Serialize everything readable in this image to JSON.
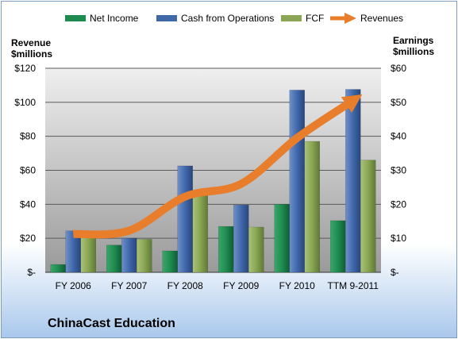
{
  "chart_data": {
    "type": "bar",
    "title": "ChinaCast Education",
    "categories": [
      "FY 2006",
      "FY 2007",
      "FY 2008",
      "FY 2009",
      "FY 2010",
      "TTM 9-2011"
    ],
    "series": [
      {
        "name": "Net Income",
        "axis": "right",
        "kind": "bar",
        "color": "#1e8b4e",
        "values": [
          2.3,
          8.0,
          6.3,
          13.5,
          20.0,
          15.2
        ]
      },
      {
        "name": "Cash from Operations",
        "axis": "right",
        "kind": "bar",
        "color": "#3f68a9",
        "values": [
          12.2,
          10.0,
          31.3,
          19.8,
          53.6,
          53.8
        ]
      },
      {
        "name": "FCF",
        "axis": "right",
        "kind": "bar",
        "color": "#8aa655",
        "values": [
          11.5,
          9.7,
          23.0,
          13.3,
          38.5,
          33.0
        ]
      },
      {
        "name": "Revenues",
        "axis": "left",
        "kind": "line",
        "color": "#e87d2b",
        "values": [
          22.5,
          24.5,
          44.5,
          52.0,
          79.0,
          101.0
        ]
      }
    ],
    "y_left": {
      "label_line1": "Revenue",
      "label_line2": "$millions",
      "range": [
        0,
        120
      ],
      "ticks": [
        "$-",
        "$20",
        "$40",
        "$60",
        "$80",
        "$100",
        "$120"
      ]
    },
    "y_right": {
      "label_line1": "Earnings",
      "label_line2": "$millions",
      "range": [
        0,
        60
      ],
      "ticks": [
        "$-",
        "$10",
        "$20",
        "$30",
        "$40",
        "$50",
        "$60"
      ]
    },
    "grid": true,
    "legend_position": "top"
  }
}
